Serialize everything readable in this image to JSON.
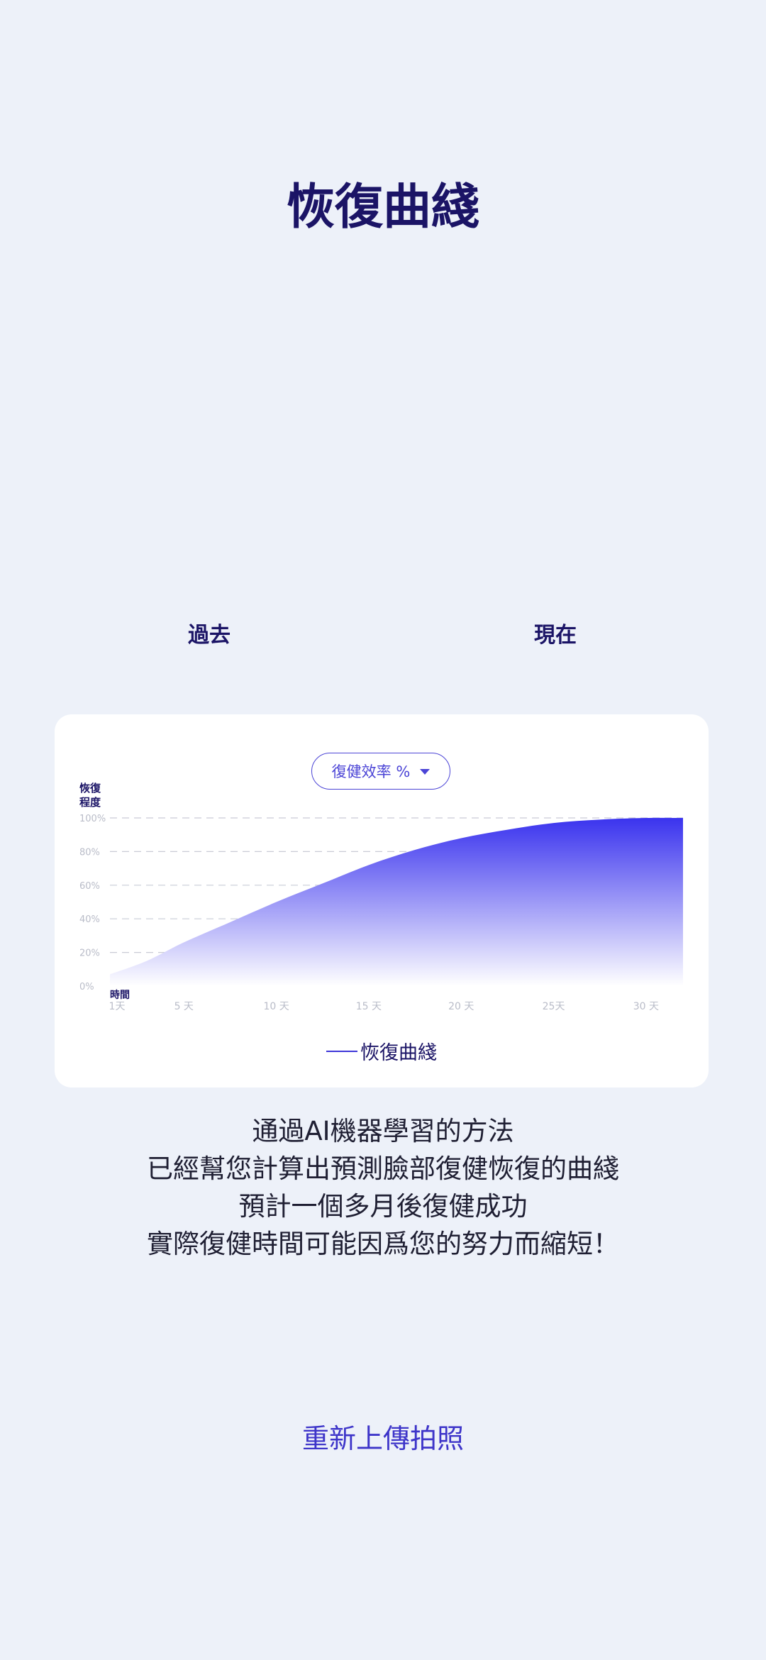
{
  "title": "恢復曲綫",
  "photos": {
    "past_label": "過去",
    "now_label": "現在"
  },
  "chart_card": {
    "dropdown_label": "復健效率 %",
    "y_title_line1": "恢復",
    "y_title_line2": "程度",
    "x_title": "時間",
    "legend_label": "恢復曲綫"
  },
  "chart_data": {
    "type": "area",
    "title": "",
    "xlabel": "時間",
    "ylabel": "恢復程度",
    "y_ticks": [
      "0%",
      "20%",
      "40%",
      "60%",
      "80%",
      "100%"
    ],
    "x_ticks": [
      "1天",
      "5 天",
      "10 天",
      "15 天",
      "20 天",
      "25天",
      "30 天"
    ],
    "xlim": [
      1,
      32
    ],
    "ylim": [
      0,
      100
    ],
    "grid": true,
    "legend": "bottom-center",
    "series": [
      {
        "name": "恢復曲綫",
        "x": [
          1,
          3,
          5,
          7.5,
          10,
          12.5,
          15,
          17.5,
          20,
          22.5,
          25,
          27.5,
          30,
          32
        ],
        "y": [
          7,
          15,
          26,
          38,
          50,
          61,
          72,
          81,
          88,
          93,
          97,
          99,
          100,
          100
        ]
      }
    ],
    "colors": {
      "fill_top": "#3a33ee",
      "fill_bottom": "#ffffff",
      "grid": "#c9cbd6",
      "tick_text": "#b9bcc8"
    }
  },
  "description": [
    "通過AI機器學習的方法",
    "已經幫您計算出預測臉部復健恢復的曲綫",
    "預計一個多月後復健成功",
    "實際復健時間可能因爲您的努力而縮短！"
  ],
  "reupload_label": "重新上傳拍照"
}
